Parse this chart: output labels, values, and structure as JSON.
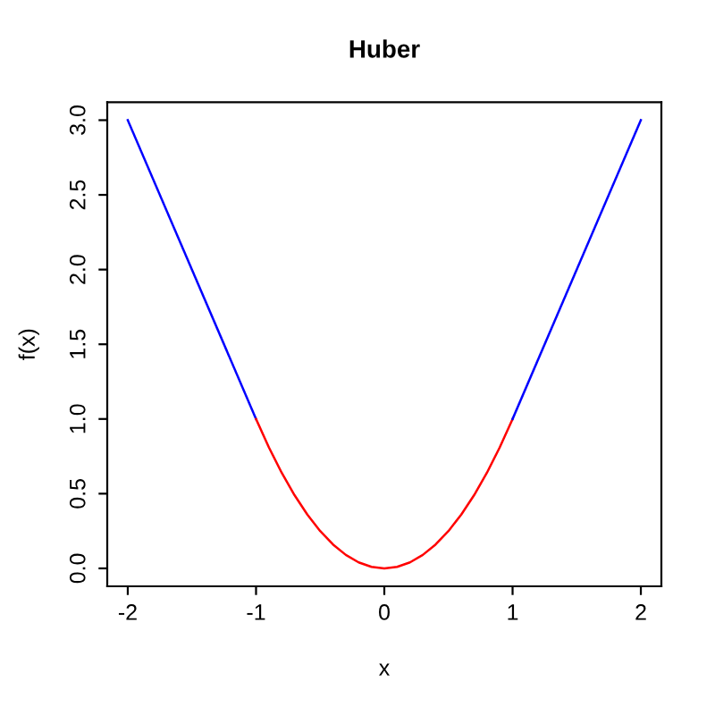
{
  "chart_data": {
    "type": "line",
    "title": "Huber",
    "xlabel": "x",
    "ylabel": "f(x)",
    "xlim": [
      -2.16,
      2.16
    ],
    "ylim": [
      -0.12,
      3.12
    ],
    "xticks": [
      -2,
      -1,
      0,
      1,
      2
    ],
    "yticks": [
      {
        "value": 0,
        "label": "0.0"
      },
      {
        "value": 0.5,
        "label": "0.5"
      },
      {
        "value": 1,
        "label": "1.0"
      },
      {
        "value": 1.5,
        "label": "1.5"
      },
      {
        "value": 2,
        "label": "2.0"
      },
      {
        "value": 2.5,
        "label": "2.5"
      },
      {
        "value": 3,
        "label": "3.0"
      }
    ],
    "grid": false,
    "marker": "none",
    "line_style": "solid",
    "series": [
      {
        "color": "#0000ff",
        "x": [
          -2,
          -1
        ],
        "values": [
          3,
          1
        ]
      },
      {
        "color": "#ff0000",
        "x": [
          -1,
          -0.9,
          -0.8,
          -0.7,
          -0.6,
          -0.5,
          -0.4,
          -0.3,
          -0.2,
          -0.1,
          0,
          0.1,
          0.2,
          0.3,
          0.4,
          0.5,
          0.6,
          0.7,
          0.8,
          0.9,
          1
        ],
        "values": [
          1,
          0.81,
          0.64,
          0.49,
          0.36,
          0.25,
          0.16,
          0.09,
          0.04,
          0.01,
          0,
          0.01,
          0.04,
          0.09,
          0.16,
          0.25,
          0.36,
          0.49,
          0.64,
          0.81,
          1
        ]
      },
      {
        "color": "#0000ff",
        "x": [
          1,
          2
        ],
        "values": [
          1,
          3
        ]
      }
    ]
  }
}
